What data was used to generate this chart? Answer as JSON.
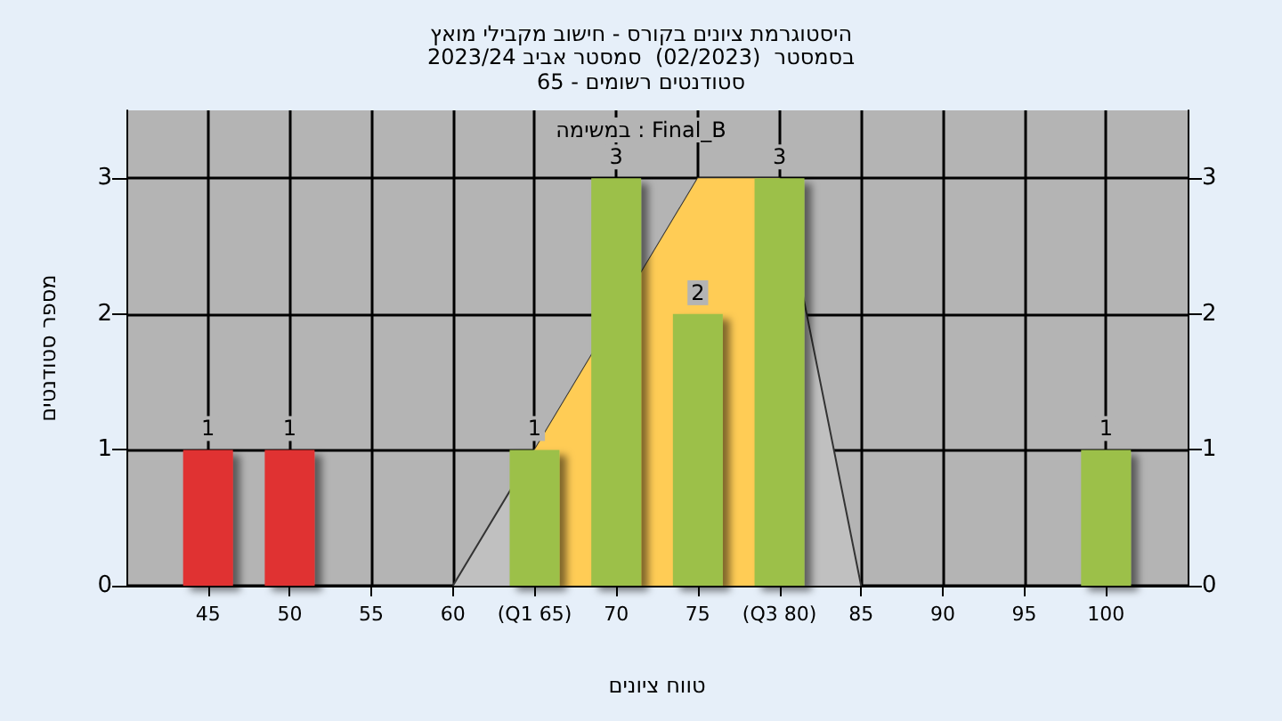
{
  "chart_data": {
    "type": "bar",
    "title": "היסטוגרמת ציונים בקורס - חישוב מקבילי מואץ",
    "subtitle": "בסמסטר  (02/2023)  סמסטר אביב 2023/24\nסטודנטים רשומים - 65",
    "xlabel": "טווח ציונים",
    "ylabel": "מספר סטודנטים",
    "annotations": [
      "במשימה : Final_B"
    ],
    "series": [
      {
        "type": "area",
        "color": "#c0c0c0",
        "x": [
          60,
          65,
          75,
          80,
          85
        ],
        "values": [
          0,
          1,
          3,
          3,
          0
        ]
      },
      {
        "type": "area",
        "color": "#ffcc55",
        "x": [
          65,
          75,
          80
        ],
        "values": [
          1,
          3,
          3
        ]
      },
      {
        "x": [
          45,
          50,
          65,
          70,
          75,
          80,
          100
        ],
        "values": [
          1,
          1,
          1,
          3,
          2,
          3,
          1
        ],
        "value_labels": [
          "1",
          "1",
          "1",
          "3",
          "2",
          "3",
          "1"
        ],
        "colors": [
          "#e03232",
          "#e03232",
          "#9cc04a",
          "#9cc04a",
          "#9cc04a",
          "#9cc04a",
          "#9cc04a"
        ]
      }
    ],
    "grid": true,
    "xlim": [
      40,
      105
    ],
    "xticks": [
      45,
      50,
      55,
      60,
      {
        "value": 65,
        "label": "(Q1 65)"
      },
      70,
      75,
      {
        "value": 80,
        "label": "(Q3 80)"
      },
      85,
      90,
      95,
      100
    ],
    "ylim": [
      0,
      3.5
    ],
    "yticks": [
      0,
      1,
      2,
      3
    ],
    "y2lim": [
      0,
      3.5
    ],
    "y2ticks": [
      0,
      1,
      2,
      3
    ]
  }
}
